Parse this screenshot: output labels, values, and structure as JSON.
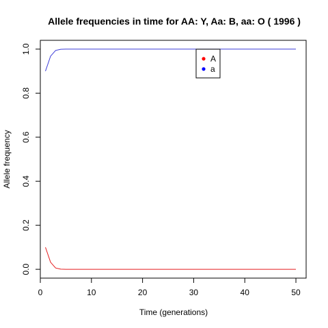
{
  "chart_data": {
    "type": "line",
    "title": "Allele frequencies in time for  AA: Y, Aa: B, aa: O  ( 1996 )",
    "xlabel": "Time (generations)",
    "ylabel": "Allele frequency",
    "xlim": [
      0,
      52
    ],
    "ylim": [
      -0.04,
      1.04
    ],
    "xticks": [
      0,
      10,
      20,
      30,
      40,
      50
    ],
    "xtick_labels": [
      "0",
      "10",
      "20",
      "30",
      "40",
      "50"
    ],
    "yticks": [
      0.0,
      0.2,
      0.4,
      0.6,
      0.8,
      1.0
    ],
    "ytick_labels": [
      "0.0",
      "0.2",
      "0.4",
      "0.6",
      "0.8",
      "1.0"
    ],
    "grid": false,
    "legend_position": "top-right",
    "x": [
      1,
      2,
      3,
      4,
      5,
      6,
      7,
      8,
      9,
      10,
      11,
      12,
      13,
      14,
      15,
      16,
      17,
      18,
      19,
      20,
      21,
      22,
      23,
      24,
      25,
      26,
      27,
      28,
      29,
      30,
      31,
      32,
      33,
      34,
      35,
      36,
      37,
      38,
      39,
      40,
      41,
      42,
      43,
      44,
      45,
      46,
      47,
      48,
      49,
      50
    ],
    "series": [
      {
        "name": "A",
        "color": "#e41a1c",
        "values": [
          0.1,
          0.032,
          0.006,
          0.0005,
          0,
          0,
          0,
          0,
          0,
          0,
          0,
          0,
          0,
          0,
          0,
          0,
          0,
          0,
          0,
          0,
          0,
          0,
          0,
          0,
          0,
          0,
          0,
          0,
          0,
          0,
          0,
          0,
          0,
          0,
          0,
          0,
          0,
          0,
          0,
          0,
          0,
          0,
          0,
          0,
          0,
          0,
          0,
          0,
          0,
          0
        ]
      },
      {
        "name": "a",
        "color": "#3a3ad8",
        "values": [
          0.9,
          0.968,
          0.994,
          0.9995,
          1,
          1,
          1,
          1,
          1,
          1,
          1,
          1,
          1,
          1,
          1,
          1,
          1,
          1,
          1,
          1,
          1,
          1,
          1,
          1,
          1,
          1,
          1,
          1,
          1,
          1,
          1,
          1,
          1,
          1,
          1,
          1,
          1,
          1,
          1,
          1,
          1,
          1,
          1,
          1,
          1,
          1,
          1,
          1,
          1,
          1
        ]
      }
    ],
    "legend_marker_colors": [
      "#ff0000",
      "#0000ff"
    ]
  }
}
